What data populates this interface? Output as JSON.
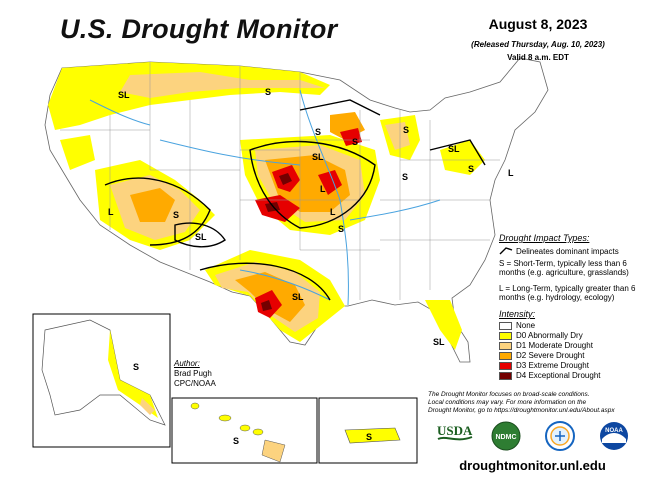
{
  "title": "U.S. Drought Monitor",
  "date": "August 8, 2023",
  "released": "(Released Thursday, Aug. 10, 2023)",
  "valid": "Valid 8 a.m. EDT",
  "impact_types": {
    "title": "Drought Impact Types:",
    "delineates": "Delineates dominant impacts",
    "short_term": "S = Short-Term, typically less than 6 months (e.g. agriculture, grasslands)",
    "long_term": "L = Long-Term, typically greater than 6 months (e.g. hydrology, ecology)"
  },
  "intensity": {
    "title": "Intensity:",
    "categories": [
      {
        "label": "None",
        "color": "#ffffff"
      },
      {
        "label": "D0 Abnormally Dry",
        "color": "#ffff00"
      },
      {
        "label": "D1 Moderate Drought",
        "color": "#fcd37f"
      },
      {
        "label": "D2 Severe Drought",
        "color": "#ffaa00"
      },
      {
        "label": "D3 Extreme Drought",
        "color": "#e60000"
      },
      {
        "label": "D4 Exceptional Drought",
        "color": "#730000"
      }
    ]
  },
  "author": {
    "heading": "Author:",
    "name": "Brad Pugh",
    "org": "CPC/NOAA"
  },
  "note": {
    "line1": "The Drought Monitor focuses on broad-scale conditions.",
    "line2": "Local conditions may vary. For more information on the",
    "line3": "Drought Monitor, go to https://droughtmonitor.unl.edu/About.aspx"
  },
  "url": "droughtmonitor.unl.edu",
  "logos": {
    "usda": "USDA",
    "ndmc": "NDMC",
    "noaa": "NOAA"
  },
  "map_labels": {
    "S": "S",
    "L": "L",
    "SL": "SL"
  },
  "colors": {
    "water": "#4aa3df",
    "state_line": "#999999",
    "impact_line": "#000000"
  }
}
